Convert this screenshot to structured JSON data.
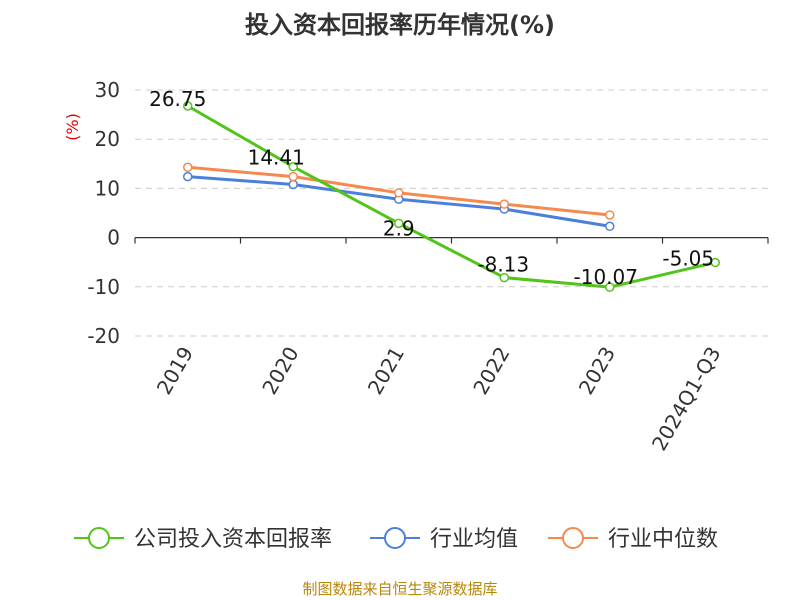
{
  "chart_data": {
    "type": "line",
    "title": "投入资本回报率历年情况(%)",
    "y_unit": "(%)",
    "categories": [
      "2019",
      "2020",
      "2021",
      "2022",
      "2023",
      "2024Q1-Q3"
    ],
    "ylim": [
      -20,
      30
    ],
    "yticks": [
      30,
      20,
      10,
      0,
      -10,
      -20
    ],
    "ytick_labels": [
      "30",
      "20",
      "10",
      "0",
      "-10",
      "-20"
    ],
    "grid": true,
    "legend_position": "bottom",
    "series": [
      {
        "name": "公司投入资本回报率",
        "color": "#52c41a",
        "values": [
          26.75,
          14.41,
          2.9,
          -8.13,
          -10.07,
          -5.05
        ],
        "labels": [
          "26.75",
          "14.41",
          "2.9",
          "-8.13",
          "-10.07",
          "-5.05"
        ]
      },
      {
        "name": "行业均值",
        "color": "#4a7fdc",
        "values": [
          12.4,
          10.8,
          7.8,
          5.8,
          2.3,
          null
        ],
        "labels": []
      },
      {
        "name": "行业中位数",
        "color": "#f5894f",
        "values": [
          14.3,
          12.4,
          9.1,
          6.8,
          4.6,
          null
        ],
        "labels": []
      }
    ]
  },
  "source": "制图数据来自恒生聚源数据库"
}
